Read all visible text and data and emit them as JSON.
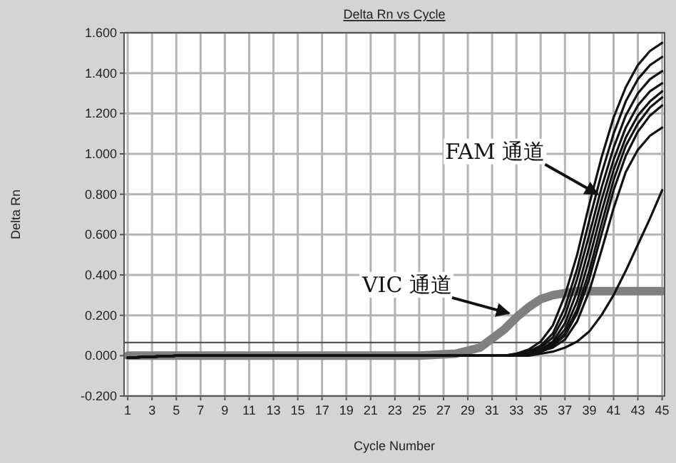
{
  "chart_data": {
    "type": "line",
    "title": "Delta Rn vs Cycle",
    "xlabel": "Cycle Number",
    "ylabel": "Delta Rn",
    "x": [
      1,
      5,
      10,
      15,
      20,
      25,
      28,
      30,
      32,
      33,
      34,
      35,
      36,
      37,
      38,
      39,
      40,
      41,
      42,
      43,
      44,
      45
    ],
    "series": [
      {
        "color": "#808080",
        "values": [
          0,
          0,
          0,
          0,
          0,
          0,
          0.01,
          0.04,
          0.13,
          0.19,
          0.24,
          0.28,
          0.3,
          0.31,
          0.32,
          0.32,
          0.32,
          0.32,
          0.32,
          0.32,
          0.32,
          0.32
        ]
      },
      {
        "color": "#111111",
        "values": [
          -0.01,
          0,
          0,
          0,
          0,
          0,
          0,
          0,
          0,
          0.01,
          0.03,
          0.07,
          0.15,
          0.3,
          0.5,
          0.75,
          0.98,
          1.18,
          1.33,
          1.44,
          1.51,
          1.55
        ]
      },
      {
        "color": "#111111",
        "values": [
          -0.01,
          0,
          0,
          0,
          0,
          0,
          0,
          0,
          0,
          0.01,
          0.02,
          0.05,
          0.11,
          0.24,
          0.43,
          0.67,
          0.9,
          1.1,
          1.26,
          1.37,
          1.44,
          1.48
        ]
      },
      {
        "color": "#111111",
        "values": [
          -0.01,
          0,
          0,
          0,
          0,
          0,
          0,
          0,
          0,
          0.0,
          0.02,
          0.04,
          0.09,
          0.2,
          0.38,
          0.6,
          0.83,
          1.03,
          1.19,
          1.3,
          1.37,
          1.41
        ]
      },
      {
        "color": "#111111",
        "values": [
          -0.01,
          0,
          0,
          0,
          0,
          0,
          0,
          0,
          0,
          0.0,
          0.01,
          0.03,
          0.07,
          0.16,
          0.32,
          0.54,
          0.77,
          0.97,
          1.13,
          1.24,
          1.31,
          1.35
        ]
      },
      {
        "color": "#111111",
        "values": [
          -0.01,
          0,
          0,
          0,
          0,
          0,
          0,
          0,
          0,
          0.0,
          0.01,
          0.03,
          0.06,
          0.13,
          0.27,
          0.48,
          0.71,
          0.92,
          1.08,
          1.19,
          1.26,
          1.31
        ]
      },
      {
        "color": "#111111",
        "values": [
          -0.01,
          0,
          0,
          0,
          0,
          0,
          0,
          0,
          0,
          0.0,
          0.01,
          0.02,
          0.05,
          0.11,
          0.23,
          0.42,
          0.65,
          0.87,
          1.04,
          1.15,
          1.23,
          1.28
        ]
      },
      {
        "color": "#111111",
        "values": [
          -0.01,
          0,
          0,
          0,
          0,
          0,
          0,
          0,
          0,
          0.0,
          0.01,
          0.02,
          0.05,
          0.1,
          0.21,
          0.38,
          0.6,
          0.82,
          0.99,
          1.11,
          1.19,
          1.24
        ]
      },
      {
        "color": "#111111",
        "values": [
          -0.01,
          0,
          0,
          0,
          0,
          0,
          0,
          0,
          0,
          0.0,
          0.0,
          0.02,
          0.04,
          0.08,
          0.17,
          0.32,
          0.52,
          0.73,
          0.91,
          1.02,
          1.09,
          1.13
        ]
      },
      {
        "color": "#111111",
        "values": [
          -0.01,
          0,
          0,
          0,
          0,
          0,
          0,
          0,
          0,
          0.0,
          0.0,
          0.01,
          0.02,
          0.04,
          0.07,
          0.12,
          0.2,
          0.3,
          0.42,
          0.55,
          0.68,
          0.82
        ]
      }
    ],
    "xlim": [
      0.7,
      45.2
    ],
    "ylim": [
      -0.2,
      1.6
    ],
    "xticks": [
      1,
      3,
      5,
      7,
      9,
      11,
      13,
      15,
      17,
      19,
      21,
      23,
      25,
      27,
      29,
      31,
      33,
      35,
      37,
      39,
      41,
      43,
      45
    ],
    "yticks": [
      {
        "value": -0.2,
        "label": "-0.200"
      },
      {
        "value": 0,
        "label": "0.000"
      },
      {
        "value": 0.2,
        "label": "0.200"
      },
      {
        "value": 0.4,
        "label": "0.400"
      },
      {
        "value": 0.6,
        "label": "0.600"
      },
      {
        "value": 0.8,
        "label": "0.800"
      },
      {
        "value": 1.0,
        "label": "1.000"
      },
      {
        "value": 1.2,
        "label": "1.200"
      },
      {
        "value": 1.4,
        "label": "1.400"
      },
      {
        "value": 1.6,
        "label": "1.600"
      }
    ],
    "ref_lines": [
      {
        "axis": "y",
        "value": 0.065,
        "color": "#555555"
      }
    ],
    "annotations": [
      {
        "text": "FAM 通道",
        "x": 39.7,
        "y": 0.8
      },
      {
        "text": "VIC 通道",
        "x": 32.4,
        "y": 0.21
      }
    ],
    "grid": true,
    "marker": "none",
    "line_style": "solid"
  }
}
